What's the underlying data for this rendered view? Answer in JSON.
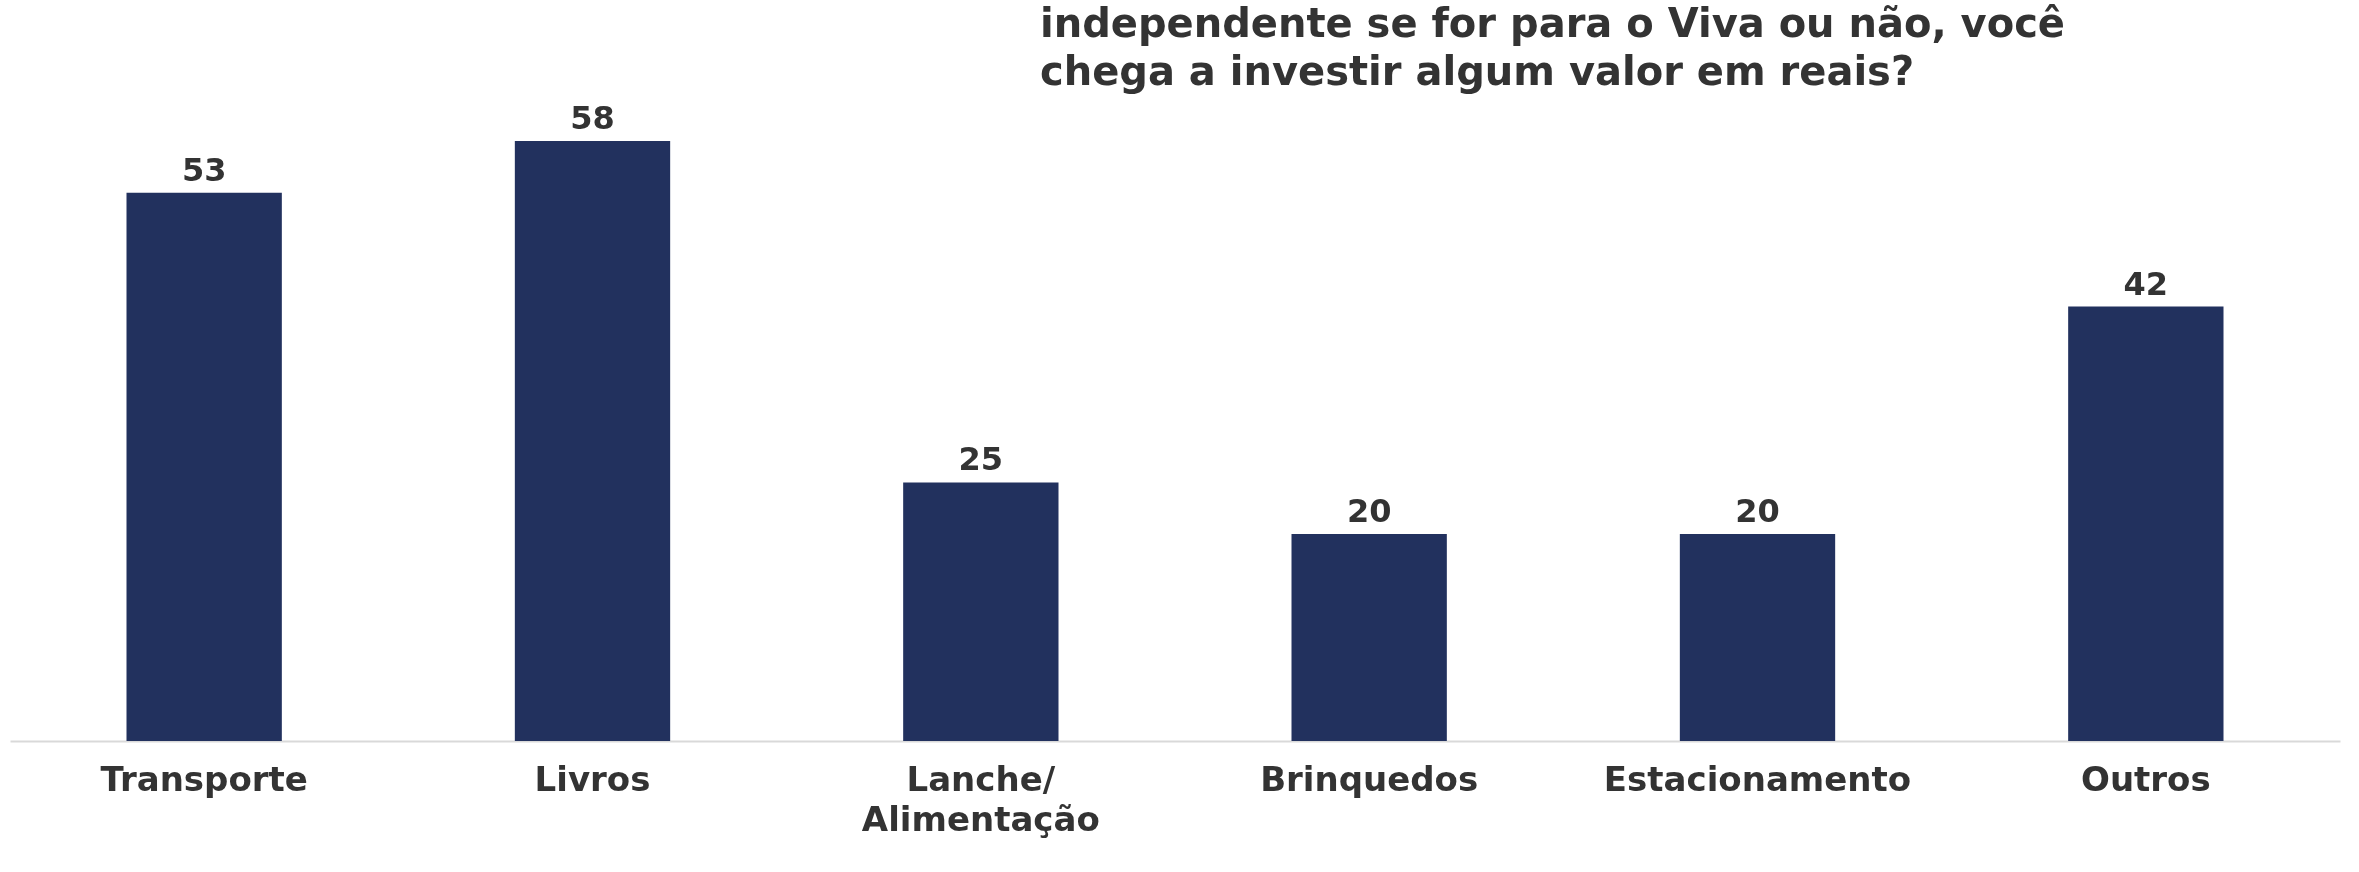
{
  "chart_data": {
    "type": "bar",
    "title": "independente se for para o Viva ou não,  você chega a investir algum valor em reais?",
    "categories": [
      "Transporte",
      "Livros",
      "Lanche/ Alimentação",
      "Brinquedos",
      "Estacionamento",
      "Outros"
    ],
    "values": [
      53,
      58,
      25,
      20,
      20,
      42
    ],
    "color": "#22315e",
    "data_labels": true,
    "grid": false
  }
}
